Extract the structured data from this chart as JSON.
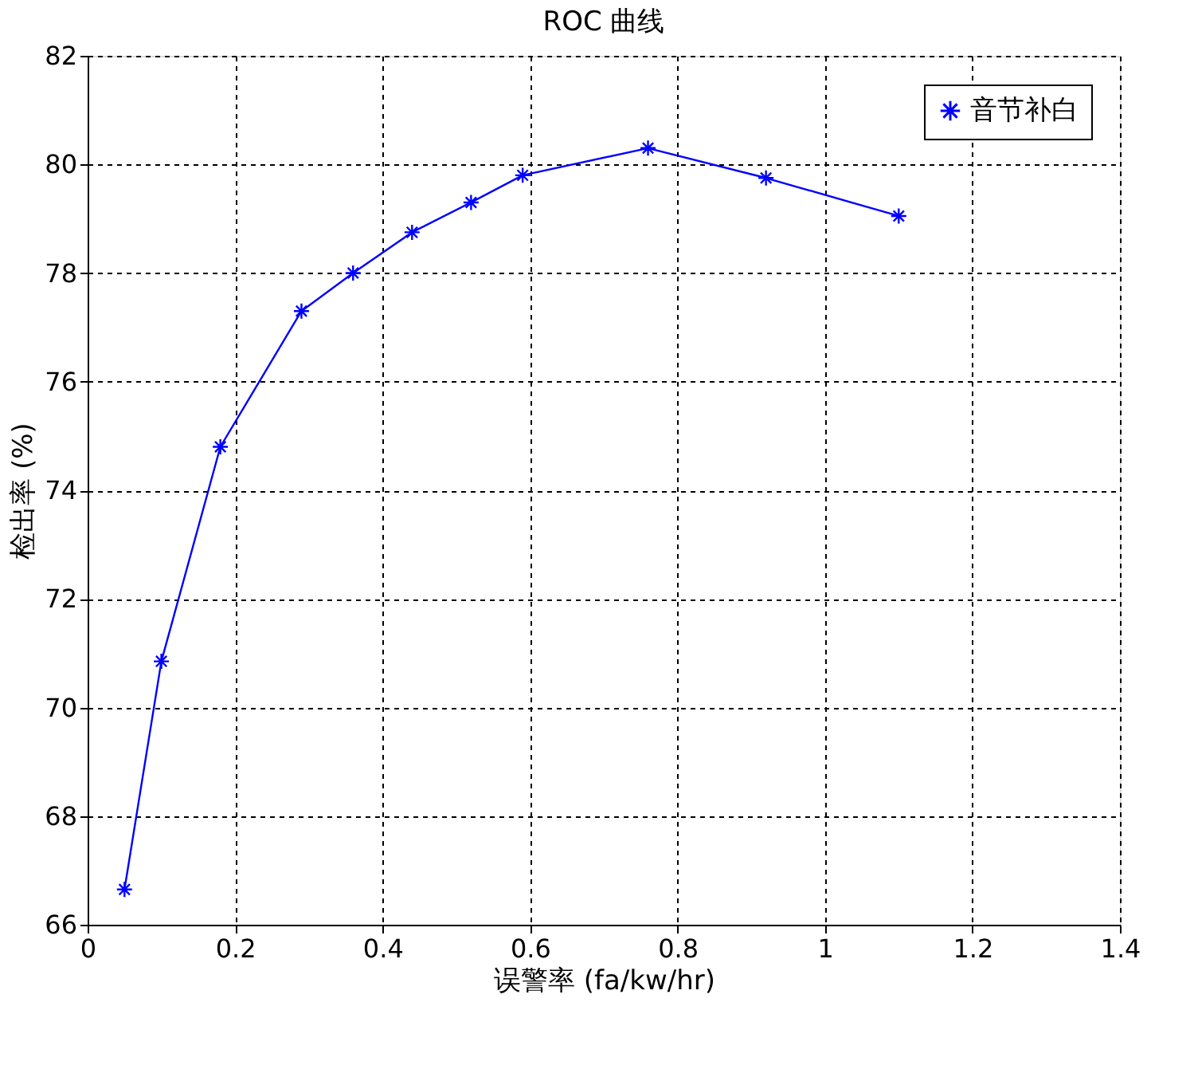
{
  "chart_data": {
    "type": "line",
    "title": "ROC 曲线",
    "xlabel": "误警率 (fa/kw/hr)",
    "ylabel": "检出率 (%)",
    "x": [
      0.05,
      0.1,
      0.18,
      0.29,
      0.36,
      0.44,
      0.52,
      0.59,
      0.76,
      0.92,
      1.1
    ],
    "series": [
      {
        "name": "音节补白",
        "color": "#0000ff",
        "values": [
          66.65,
          70.85,
          74.8,
          77.3,
          78.0,
          78.75,
          79.3,
          79.8,
          80.3,
          79.75,
          79.05
        ]
      }
    ],
    "xlim": [
      0,
      1.4
    ],
    "xticks": [
      0,
      0.2,
      0.4,
      0.6,
      0.8,
      1,
      1.2,
      1.4
    ],
    "ylim": [
      66,
      82
    ],
    "yticks": [
      66,
      68,
      70,
      72,
      74,
      76,
      78,
      80,
      82
    ],
    "grid": true,
    "legend": "top right",
    "marker": "cross",
    "line_style": "solid"
  }
}
